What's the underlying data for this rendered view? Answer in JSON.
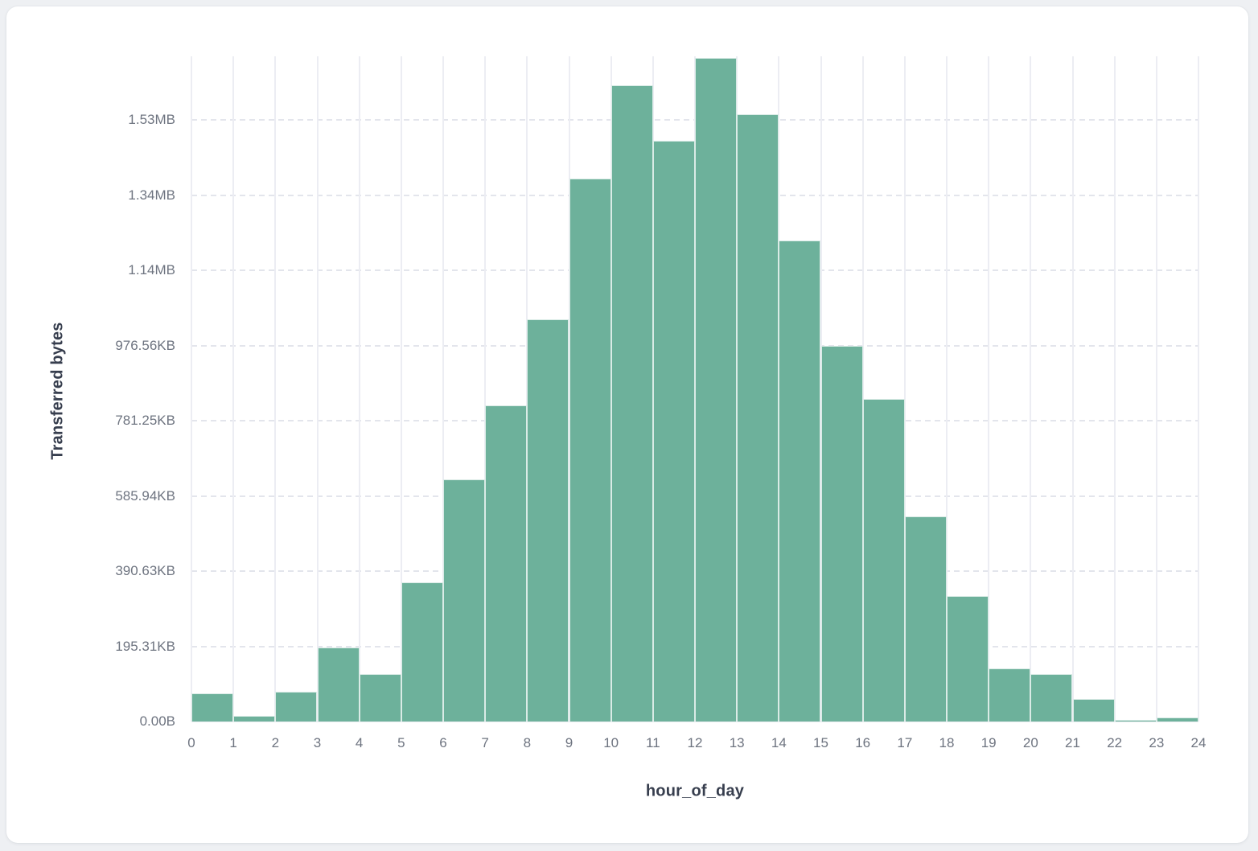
{
  "chart_data": {
    "type": "bar",
    "subtype": "histogram",
    "title": "",
    "xlabel": "hour_of_day",
    "ylabel": "Transferred bytes",
    "x_bin_edges": [
      0,
      1,
      2,
      3,
      4,
      5,
      6,
      7,
      8,
      9,
      10,
      11,
      12,
      13,
      14,
      15,
      16,
      17,
      18,
      19,
      20,
      21,
      22,
      23,
      24
    ],
    "x_tick_labels": [
      "0",
      "1",
      "2",
      "3",
      "4",
      "5",
      "6",
      "7",
      "8",
      "9",
      "10",
      "11",
      "12",
      "13",
      "14",
      "15",
      "16",
      "17",
      "18",
      "19",
      "20",
      "21",
      "22",
      "23",
      "24"
    ],
    "series": [
      {
        "name": "Transferred bytes",
        "hours": [
          0,
          1,
          2,
          3,
          4,
          5,
          6,
          7,
          8,
          9,
          10,
          11,
          12,
          13,
          14,
          15,
          16,
          17,
          18,
          19,
          20,
          21,
          22,
          23
        ],
        "values_bytes": [
          75000,
          16000,
          79000,
          196000,
          127000,
          370000,
          643000,
          840000,
          1070000,
          1443000,
          1692000,
          1544000,
          1764000,
          1614000,
          1280000,
          1000000,
          857000,
          546000,
          334000,
          142000,
          127000,
          59000,
          5000,
          11000
        ]
      }
    ],
    "y_ticks": [
      {
        "label": "0.00B",
        "bytes": 0
      },
      {
        "label": "195.31KB",
        "bytes": 200000
      },
      {
        "label": "390.63KB",
        "bytes": 400000
      },
      {
        "label": "585.94KB",
        "bytes": 600000
      },
      {
        "label": "781.25KB",
        "bytes": 800000
      },
      {
        "label": "976.56KB",
        "bytes": 1000000
      },
      {
        "label": "1.14MB",
        "bytes": 1200000
      },
      {
        "label": "1.34MB",
        "bytes": 1400000
      },
      {
        "label": "1.53MB",
        "bytes": 1600000
      }
    ],
    "y_axis_max_bytes": 1769000,
    "grid": {
      "vertical": "solid",
      "horizontal": "dashed"
    },
    "legend": "none",
    "colors": {
      "page_bg": "#eef0f3",
      "card_bg": "#ffffff",
      "bar_fill": "#6db19b",
      "grid_vertical": "#ecedf3",
      "grid_horizontal": "#e3e5ec",
      "tick_text": "#6e7480",
      "axis_title_text": "#373e4e"
    }
  }
}
